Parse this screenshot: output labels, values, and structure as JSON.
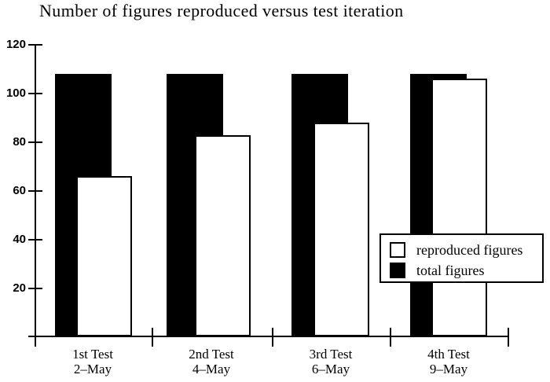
{
  "chart_data": {
    "type": "bar",
    "title": "Number of figures reproduced versus test iteration",
    "categories": [
      "1st Test",
      "2nd Test",
      "3rd Test",
      "4th Test"
    ],
    "category_dates": [
      "2–May",
      "4–May",
      "6–May",
      "9–May"
    ],
    "series": [
      {
        "name": "total figures",
        "color": "#000000",
        "values": [
          108,
          108,
          108,
          108
        ]
      },
      {
        "name": "reproduced figures",
        "color": "#ffffff",
        "values": [
          66,
          83,
          88,
          106
        ]
      }
    ],
    "xlabel": "",
    "ylabel": "",
    "ylim": [
      0,
      120
    ],
    "yticks": [
      20,
      40,
      60,
      80,
      100,
      120
    ],
    "grid": false,
    "bar_style": "overlapping",
    "legend_position": "middle-right",
    "legend_order": [
      "reproduced figures",
      "total figures"
    ],
    "colors": {
      "ink": "#000000",
      "background": "#ffffff"
    }
  }
}
